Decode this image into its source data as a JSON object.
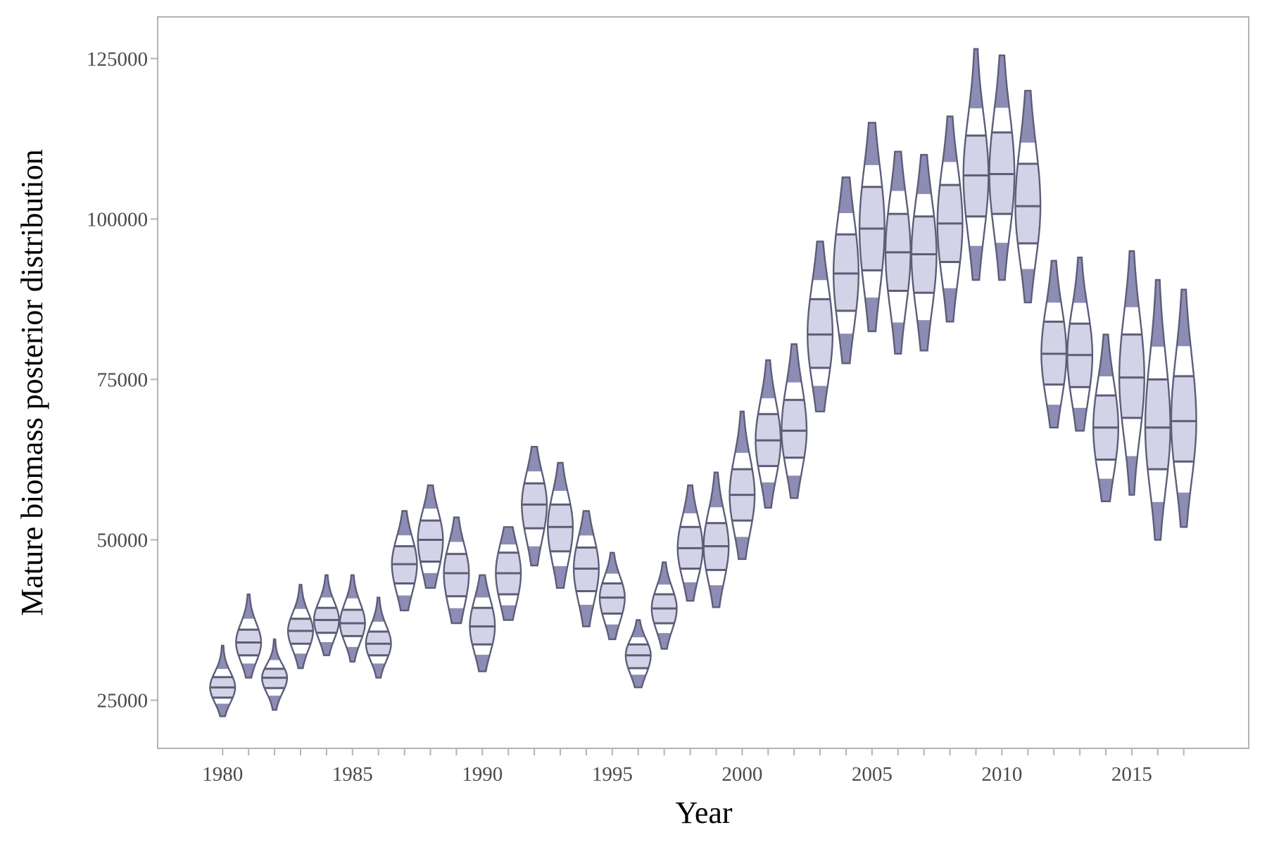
{
  "chart_data": {
    "type": "violin",
    "title": "",
    "xlabel": "Year",
    "ylabel": "Mature biomass posterior distribution",
    "xlim": [
      1977.5,
      2019.5
    ],
    "ylim": [
      17500,
      131500
    ],
    "x_ticks": [
      1980,
      1985,
      1990,
      1995,
      2000,
      2005,
      2010,
      2015
    ],
    "y_ticks": [
      25000,
      50000,
      75000,
      100000,
      125000
    ],
    "x_tick_labels": [
      "1980",
      "1985",
      "1990",
      "1995",
      "2000",
      "2005",
      "2010",
      "2015"
    ],
    "y_tick_labels": [
      "25000",
      "50000",
      "75000",
      "100000",
      "125000"
    ],
    "grid": false,
    "legend": "none",
    "colors": {
      "outer": "#8c8cb4",
      "inner": "#d2d3e6",
      "outline": "#5d5d79",
      "axis": "#b3b3b3"
    },
    "series": [
      {
        "x": 1980,
        "min": 22500,
        "q025": 24300,
        "q25": 25400,
        "median": 27000,
        "q75": 28600,
        "q975": 30100,
        "max": 33500
      },
      {
        "x": 1981,
        "min": 28500,
        "q025": 30500,
        "q25": 32000,
        "median": 34000,
        "q75": 36000,
        "q975": 38000,
        "max": 41500
      },
      {
        "x": 1982,
        "min": 23500,
        "q025": 25500,
        "q25": 26900,
        "median": 28500,
        "q75": 29900,
        "q975": 31500,
        "max": 34500
      },
      {
        "x": 1983,
        "min": 30000,
        "q025": 32000,
        "q25": 33800,
        "median": 35800,
        "q75": 37700,
        "q975": 39500,
        "max": 43000
      },
      {
        "x": 1984,
        "min": 32000,
        "q025": 33800,
        "q25": 35500,
        "median": 37500,
        "q75": 39400,
        "q975": 41300,
        "max": 44500
      },
      {
        "x": 1985,
        "min": 31000,
        "q025": 33000,
        "q25": 35000,
        "median": 37000,
        "q75": 39100,
        "q975": 41200,
        "max": 44500
      },
      {
        "x": 1986,
        "min": 28500,
        "q025": 30500,
        "q25": 32000,
        "median": 33800,
        "q75": 35700,
        "q975": 37500,
        "max": 41000
      },
      {
        "x": 1987,
        "min": 39000,
        "q025": 41000,
        "q25": 43200,
        "median": 46200,
        "q75": 49000,
        "q975": 51000,
        "max": 54500
      },
      {
        "x": 1988,
        "min": 42500,
        "q025": 44500,
        "q25": 46600,
        "median": 50000,
        "q75": 53000,
        "q975": 55200,
        "max": 58500
      },
      {
        "x": 1989,
        "min": 37000,
        "q025": 39000,
        "q25": 41200,
        "median": 44800,
        "q75": 47800,
        "q975": 50000,
        "max": 53500
      },
      {
        "x": 1990,
        "min": 29500,
        "q025": 31800,
        "q25": 33700,
        "median": 36500,
        "q75": 39400,
        "q975": 41300,
        "max": 44500
      },
      {
        "x": 1991,
        "min": 37500,
        "q025": 39500,
        "q25": 41500,
        "median": 44800,
        "q75": 48000,
        "q975": 49500,
        "max": 52000
      },
      {
        "x": 1992,
        "min": 46000,
        "q025": 48500,
        "q25": 51800,
        "median": 55500,
        "q75": 58800,
        "q975": 61000,
        "max": 64500
      },
      {
        "x": 1993,
        "min": 42500,
        "q025": 45500,
        "q25": 48200,
        "median": 52000,
        "q75": 55500,
        "q975": 58000,
        "max": 62000
      },
      {
        "x": 1994,
        "min": 36500,
        "q025": 39500,
        "q25": 42000,
        "median": 45500,
        "q75": 48800,
        "q975": 51000,
        "max": 54500
      },
      {
        "x": 1995,
        "min": 34500,
        "q025": 36500,
        "q25": 38500,
        "median": 41000,
        "q75": 43200,
        "q975": 45000,
        "max": 48000
      },
      {
        "x": 1996,
        "min": 27000,
        "q025": 28800,
        "q25": 30000,
        "median": 32000,
        "q75": 33700,
        "q975": 35000,
        "max": 37500
      },
      {
        "x": 1997,
        "min": 33000,
        "q025": 35200,
        "q25": 37000,
        "median": 39300,
        "q75": 41500,
        "q975": 43300,
        "max": 46500
      },
      {
        "x": 1998,
        "min": 40500,
        "q025": 43000,
        "q25": 45500,
        "median": 48700,
        "q75": 52000,
        "q975": 54500,
        "max": 58500
      },
      {
        "x": 1999,
        "min": 39500,
        "q025": 42500,
        "q25": 45300,
        "median": 49000,
        "q75": 52600,
        "q975": 55500,
        "max": 60500
      },
      {
        "x": 2000,
        "min": 47000,
        "q025": 50000,
        "q25": 53000,
        "median": 57000,
        "q75": 61000,
        "q975": 64000,
        "max": 70000
      },
      {
        "x": 2001,
        "min": 55000,
        "q025": 58500,
        "q25": 61500,
        "median": 65500,
        "q75": 69600,
        "q975": 72500,
        "max": 78000
      },
      {
        "x": 2002,
        "min": 56500,
        "q025": 59500,
        "q25": 62800,
        "median": 67000,
        "q75": 71800,
        "q975": 75000,
        "max": 80500
      },
      {
        "x": 2003,
        "min": 70000,
        "q025": 73500,
        "q25": 76800,
        "median": 82000,
        "q75": 87500,
        "q975": 91000,
        "max": 96500
      },
      {
        "x": 2004,
        "min": 77500,
        "q025": 81500,
        "q25": 85700,
        "median": 91500,
        "q75": 97600,
        "q975": 101500,
        "max": 106500
      },
      {
        "x": 2005,
        "min": 82500,
        "q025": 87000,
        "q25": 92000,
        "median": 98500,
        "q75": 105000,
        "q975": 109000,
        "max": 115000
      },
      {
        "x": 2006,
        "min": 79000,
        "q025": 83000,
        "q25": 88800,
        "median": 94800,
        "q75": 100800,
        "q975": 105000,
        "max": 110500
      },
      {
        "x": 2007,
        "min": 79500,
        "q025": 83500,
        "q25": 88500,
        "median": 94500,
        "q75": 100400,
        "q975": 104500,
        "max": 110000
      },
      {
        "x": 2008,
        "min": 84000,
        "q025": 88500,
        "q25": 93300,
        "median": 99300,
        "q75": 105300,
        "q975": 109500,
        "max": 116000
      },
      {
        "x": 2009,
        "min": 90500,
        "q025": 95000,
        "q25": 100400,
        "median": 106800,
        "q75": 113000,
        "q975": 118000,
        "max": 126500
      },
      {
        "x": 2010,
        "min": 90500,
        "q025": 95500,
        "q25": 100800,
        "median": 107000,
        "q75": 113500,
        "q975": 118000,
        "max": 125500
      },
      {
        "x": 2011,
        "min": 87000,
        "q025": 91500,
        "q25": 96200,
        "median": 102000,
        "q75": 108600,
        "q975": 112500,
        "max": 120000
      },
      {
        "x": 2012,
        "min": 67500,
        "q025": 70500,
        "q25": 74200,
        "median": 79000,
        "q75": 84000,
        "q975": 87500,
        "max": 93500
      },
      {
        "x": 2013,
        "min": 67000,
        "q025": 70000,
        "q25": 73800,
        "median": 78800,
        "q75": 83700,
        "q975": 87500,
        "max": 94000
      },
      {
        "x": 2014,
        "min": 56000,
        "q025": 59000,
        "q25": 62500,
        "median": 67500,
        "q75": 72500,
        "q975": 76000,
        "max": 82000
      },
      {
        "x": 2015,
        "min": 57000,
        "q025": 62000,
        "q25": 69000,
        "median": 75300,
        "q75": 82000,
        "q975": 87000,
        "max": 95000
      },
      {
        "x": 2016,
        "min": 50000,
        "q025": 55000,
        "q25": 61000,
        "median": 67500,
        "q75": 75000,
        "q975": 81000,
        "max": 90500
      },
      {
        "x": 2017,
        "min": 52000,
        "q025": 56500,
        "q25": 62200,
        "median": 68500,
        "q75": 75500,
        "q975": 81000,
        "max": 89000
      }
    ]
  }
}
